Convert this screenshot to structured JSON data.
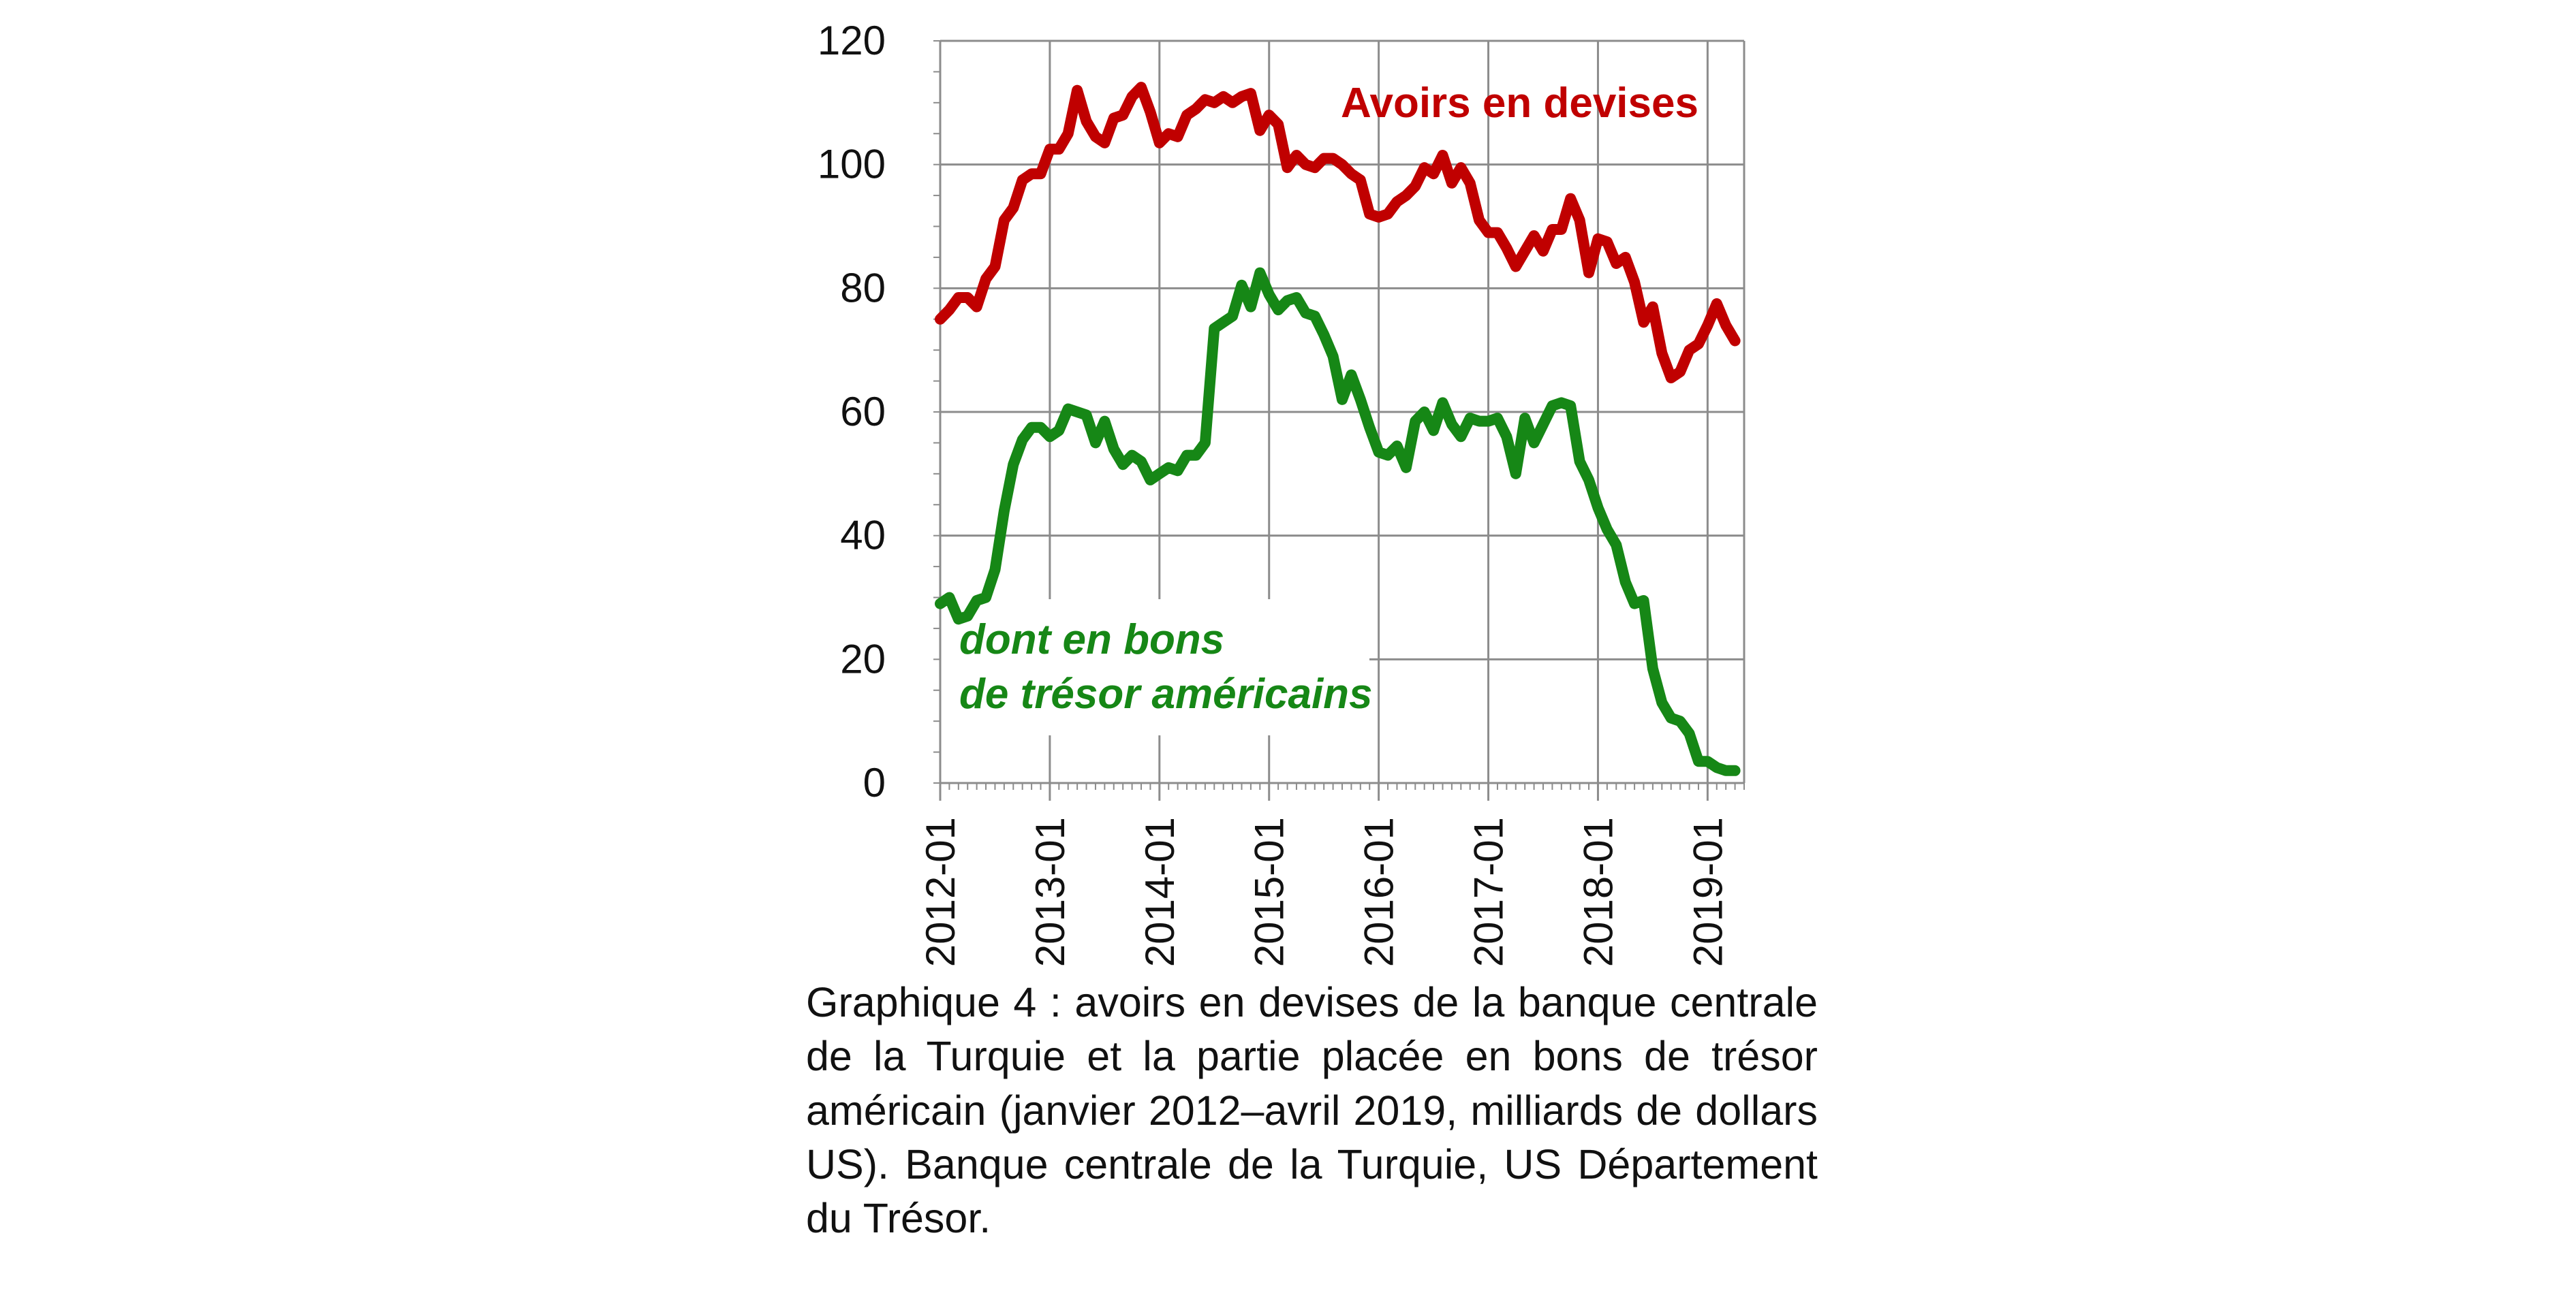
{
  "chart_data": {
    "type": "line",
    "x_start": "2012-01",
    "x_tick_labels": [
      "2012-01",
      "2013-01",
      "2014-01",
      "2015-01",
      "2016-01",
      "2017-01",
      "2018-01",
      "2019-01"
    ],
    "y_tick_labels": [
      "0",
      "20",
      "40",
      "60",
      "80",
      "100",
      "120"
    ],
    "ylim": [
      0,
      120
    ],
    "grid": true,
    "colors": {
      "reserves": "#c00000",
      "treasuries": "#168716"
    },
    "series": [
      {
        "name": "Avoirs en devises",
        "label_lines": [
          "Avoirs en devises"
        ],
        "values": [
          75,
          76.5,
          78.5,
          78.5,
          77,
          81.5,
          83.5,
          91,
          93,
          97.5,
          98.5,
          98.5,
          102.5,
          102.5,
          105,
          112,
          107,
          104.5,
          103.5,
          107.5,
          108,
          111,
          112.5,
          108.5,
          103.5,
          105,
          104.5,
          108,
          109,
          110.5,
          110,
          111,
          110,
          111,
          111.5,
          105.5,
          108,
          106.5,
          99.5,
          101.5,
          100,
          99.5,
          101,
          101,
          100,
          98.5,
          97.5,
          92,
          91.5,
          92,
          94,
          95,
          96.5,
          99.5,
          98.5,
          101.5,
          97,
          99.5,
          97,
          91,
          89,
          89,
          86.5,
          83.5,
          86,
          88.5,
          86,
          89.5,
          89.5,
          94.5,
          91,
          82.5,
          88,
          87.5,
          84,
          85,
          81,
          74.5,
          77,
          69.5,
          65.5,
          66.5,
          70,
          71,
          74,
          77.5,
          74,
          71.5
        ]
      },
      {
        "name": "dont en bons de trésor américains",
        "label_lines": [
          "dont en bons",
          "de trésor américains"
        ],
        "values": [
          29,
          30,
          26.5,
          27,
          29.5,
          30,
          34.5,
          44,
          51.5,
          55.5,
          57.5,
          57.5,
          56,
          57,
          60.5,
          60,
          59.5,
          55,
          58.5,
          54,
          51.5,
          53,
          52,
          49,
          50,
          51,
          50.5,
          53,
          53,
          55,
          73.5,
          74.5,
          75.5,
          80.5,
          77,
          82.5,
          79,
          76.5,
          78,
          78.5,
          76,
          75.5,
          72.5,
          69,
          62,
          66,
          62,
          57.5,
          53.5,
          53,
          54.5,
          51,
          58.5,
          60,
          57,
          61.5,
          58,
          56,
          59,
          58.5,
          58.5,
          59,
          56,
          50,
          59,
          55,
          58,
          61,
          61.5,
          61,
          52,
          49,
          44.5,
          41,
          38.5,
          32.5,
          29,
          29.5,
          18.5,
          13,
          10.5,
          10,
          8,
          3.5,
          3.5,
          2.5,
          2,
          2
        ]
      }
    ]
  },
  "caption": "Graphique 4 : avoirs en devises de la banque centrale de la Turquie et la partie placée en bons de trésor américain (janvier 2012–avril 2019, milliards de dollars US). Banque centrale de la Turquie, US Département du Trésor."
}
